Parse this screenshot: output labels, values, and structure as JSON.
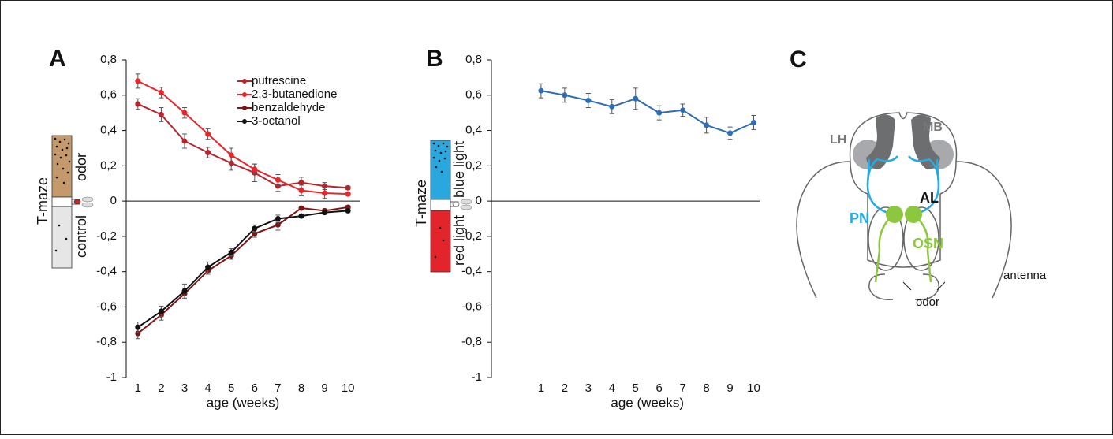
{
  "chart_data": [
    {
      "type": "line",
      "panel": "A",
      "x_label": "age (weeks)",
      "inset": {
        "title": "T-maze",
        "top": "odor",
        "bottom": "control"
      },
      "x": [
        1,
        2,
        3,
        4,
        5,
        6,
        7,
        8,
        9,
        10
      ],
      "xlim": [
        0.5,
        10.5
      ],
      "xticks": [
        1,
        2,
        3,
        4,
        5,
        6,
        7,
        8,
        9,
        10
      ],
      "ylim": [
        -1,
        0.8
      ],
      "yticks": [
        {
          "value": 0.8,
          "label": "0,8"
        },
        {
          "value": 0.6,
          "label": "0,6"
        },
        {
          "value": 0.4,
          "label": "0,4"
        },
        {
          "value": 0.2,
          "label": "0,2"
        },
        0,
        {
          "value": -0.2,
          "label": "-0,2"
        },
        {
          "value": -0.4,
          "label": "-0,4"
        },
        {
          "value": -0.6,
          "label": "-0,6"
        },
        {
          "value": -0.8,
          "label": "-0,8"
        },
        -1
      ],
      "legend": "top-right",
      "series": [
        {
          "name": "putrescine",
          "color": "#b5252b",
          "values": [
            0.55,
            0.49,
            0.34,
            0.275,
            0.215,
            0.16,
            0.085,
            0.105,
            0.085,
            0.075
          ],
          "errors": [
            0.03,
            0.04,
            0.04,
            0.03,
            0.04,
            0.05,
            0.03,
            0.03,
            0.02,
            0.01
          ]
        },
        {
          "name": "2,3-butanedione",
          "color": "#e8252a",
          "values": [
            0.68,
            0.615,
            0.5,
            0.38,
            0.26,
            0.18,
            0.12,
            0.06,
            0.045,
            0.04
          ],
          "errors": [
            0.04,
            0.03,
            0.03,
            0.03,
            0.04,
            0.03,
            0.03,
            0.03,
            0.03,
            0.01
          ]
        },
        {
          "name": "benzaldehyde",
          "color": "#7d1416",
          "values": [
            -0.75,
            -0.645,
            -0.525,
            -0.395,
            -0.31,
            -0.185,
            -0.135,
            -0.04,
            -0.055,
            -0.035
          ],
          "errors": [
            0.03,
            0.03,
            0.03,
            0.02,
            0.02,
            0.02,
            0.03,
            0.01,
            0.01,
            0.01
          ]
        },
        {
          "name": "3-octanol",
          "color": "#111111",
          "values": [
            -0.715,
            -0.625,
            -0.51,
            -0.375,
            -0.29,
            -0.155,
            -0.1,
            -0.085,
            -0.065,
            -0.055
          ],
          "errors": [
            0.03,
            0.03,
            0.04,
            0.03,
            0.02,
            0.02,
            0.02,
            0.01,
            0.01,
            0.01
          ]
        }
      ]
    },
    {
      "type": "line",
      "panel": "B",
      "x_label": "age (weeks)",
      "inset": {
        "title": "T-maze",
        "top": "blue light",
        "bottom": "red light"
      },
      "x": [
        1,
        2,
        3,
        4,
        5,
        6,
        7,
        8,
        9,
        10
      ],
      "xlim": [
        -1.1,
        10.25
      ],
      "xticks": [
        1,
        2,
        3,
        4,
        5,
        6,
        7,
        8,
        9,
        10
      ],
      "ylim": [
        -1,
        0.8
      ],
      "yticks": [
        {
          "value": 0.8,
          "label": "0,8"
        },
        {
          "value": 0.6,
          "label": "0,6"
        },
        {
          "value": 0.4,
          "label": "0,4"
        },
        {
          "value": 0.2,
          "label": "0,2"
        },
        0,
        {
          "value": -0.2,
          "label": "-0,2"
        },
        {
          "value": -0.4,
          "label": "-0,4"
        },
        {
          "value": -0.6,
          "label": "-0,6"
        },
        {
          "value": -0.8,
          "label": "-0,8"
        },
        -1
      ],
      "series": [
        {
          "color": "#2e6db4",
          "values": [
            0.625,
            0.6,
            0.57,
            0.535,
            0.58,
            0.5,
            0.515,
            0.43,
            0.385,
            0.445
          ],
          "errors": [
            0.04,
            0.04,
            0.04,
            0.04,
            0.06,
            0.04,
            0.035,
            0.045,
            0.035,
            0.04
          ]
        }
      ]
    }
  ],
  "diagram": {
    "panel": "C",
    "labels": {
      "lh": "LH",
      "mb": "MB",
      "al": "AL",
      "pn": "PN",
      "osn": "OSN",
      "antenna": "antenna",
      "odor": "odor"
    }
  }
}
